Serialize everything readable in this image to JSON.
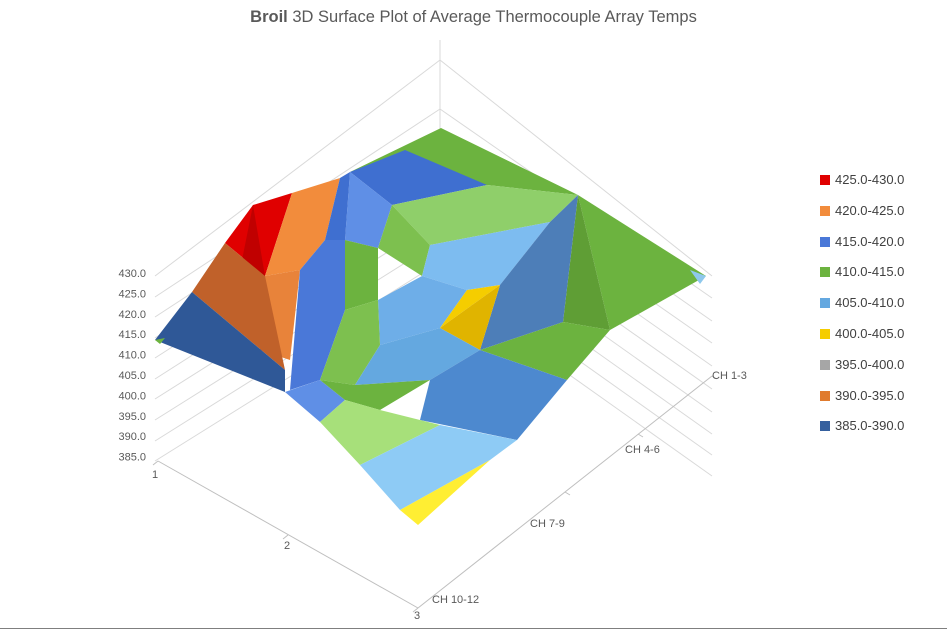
{
  "chart_data": {
    "type": "surface",
    "title_bold": "Broil",
    "title_rest": " 3D Surface Plot of Average Thermocouple Array Temps",
    "z_ticks": [
      "430.0",
      "425.0",
      "420.0",
      "415.0",
      "410.0",
      "405.0",
      "400.0",
      "395.0",
      "390.0",
      "385.0"
    ],
    "z_range": [
      385,
      430
    ],
    "row_ticks": [
      "1",
      "2",
      "3"
    ],
    "series_ticks": [
      "CH 1-3",
      "CH 4-6",
      "CH 7-9",
      "CH 10-12"
    ],
    "legend": [
      {
        "label": "425.0-430.0",
        "color": "#e00000"
      },
      {
        "label": "420.0-425.0",
        "color": "#f28c3c"
      },
      {
        "label": "415.0-420.0",
        "color": "#4a78d8"
      },
      {
        "label": "410.0-415.0",
        "color": "#6cb33f"
      },
      {
        "label": "405.0-410.0",
        "color": "#64a8e0"
      },
      {
        "label": "400.0-405.0",
        "color": "#f5cd00"
      },
      {
        "label": "395.0-400.0",
        "color": "#a6a6a6"
      },
      {
        "label": "390.0-395.0",
        "color": "#e07b2e"
      },
      {
        "label": "385.0-390.0",
        "color": "#35609e"
      }
    ]
  }
}
